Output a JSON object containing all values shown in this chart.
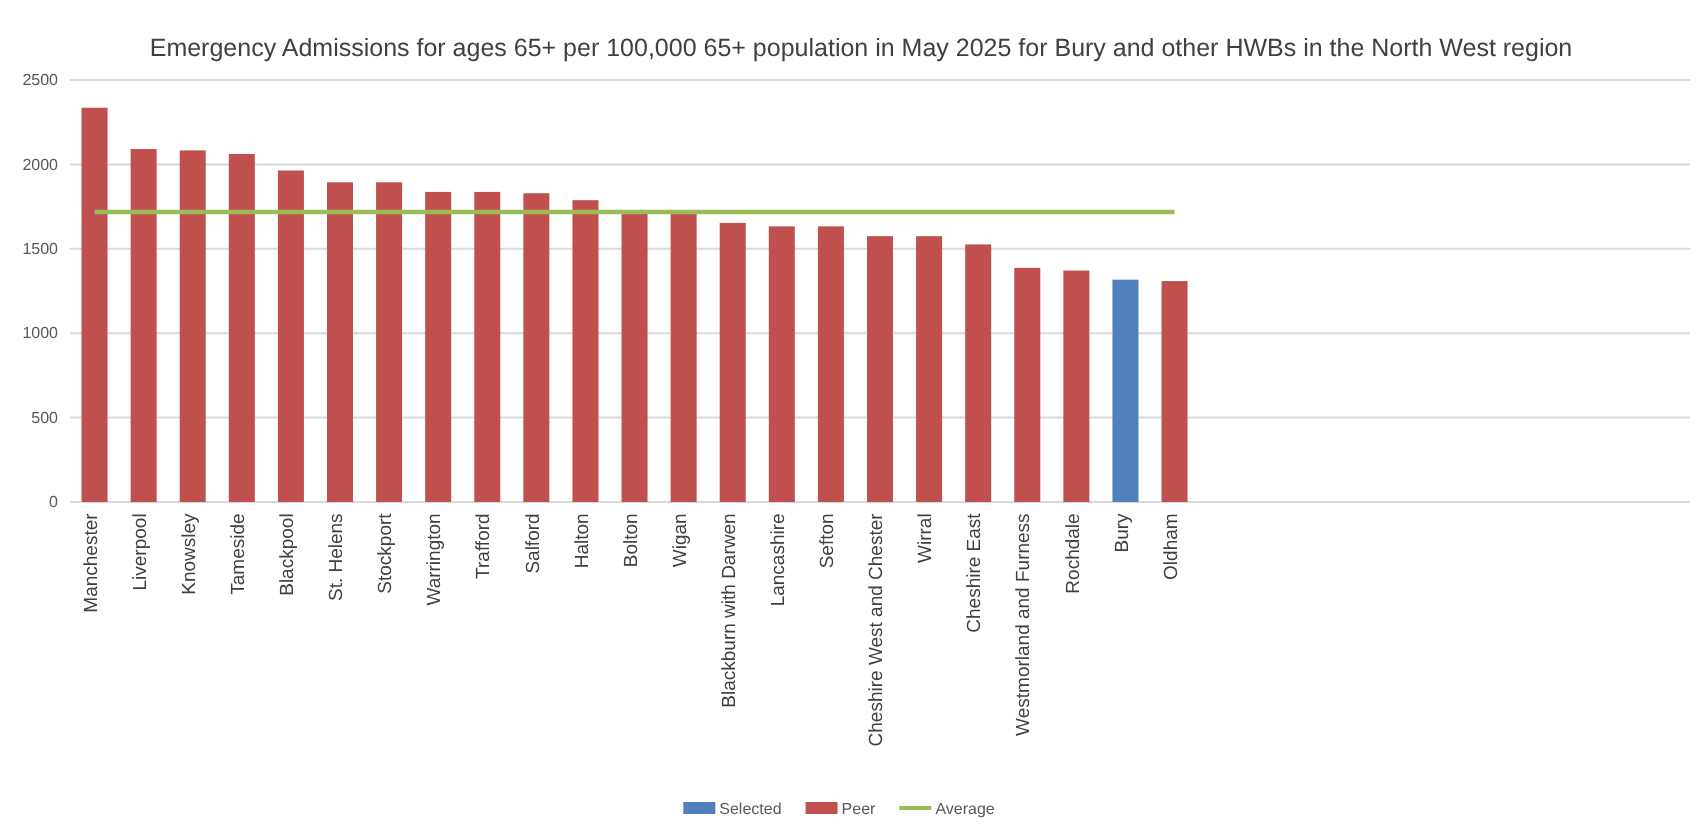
{
  "chart_data": {
    "type": "bar",
    "title": "Emergency Admissions for ages 65+ per 100,000 65+ population in May 2025  for Bury and other HWBs in the North West region",
    "categories": [
      "Manchester",
      "Liverpool",
      "Knowsley",
      "Tameside",
      "Blackpool",
      "St. Helens",
      "Stockport",
      "Warrington",
      "Trafford",
      "Salford",
      "Halton",
      "Bolton",
      "Wigan",
      "Blackburn with Darwen",
      "Lancashire",
      "Sefton",
      "Cheshire West  and Chester",
      "Wirral",
      "Cheshire East",
      "Westmorland and Furness",
      "Rochdale",
      "Bury",
      "Oldham",
      null,
      null,
      null,
      null,
      null,
      null,
      null,
      null,
      null,
      null
    ],
    "series": [
      {
        "name": "Selected",
        "color": "#4f81bd",
        "values": [
          null,
          null,
          null,
          null,
          null,
          null,
          null,
          null,
          null,
          null,
          null,
          null,
          null,
          null,
          null,
          null,
          null,
          null,
          null,
          null,
          null,
          1317,
          null,
          null,
          null,
          null,
          null,
          null,
          null,
          null,
          null,
          null,
          null
        ]
      },
      {
        "name": "Peer",
        "color": "#c0504d",
        "values": [
          2336,
          2091,
          2083,
          2062,
          1964,
          1894,
          1894,
          1837,
          1837,
          1829,
          1788,
          1710,
          1710,
          1653,
          1633,
          1633,
          1575,
          1575,
          1526,
          1387,
          1371,
          null,
          1309,
          null,
          null,
          null,
          null,
          null,
          null,
          null,
          null,
          null,
          null
        ]
      },
      {
        "name": "Average",
        "type": "line",
        "color": "#9bbb59",
        "values": [
          1718,
          1718,
          1718,
          1718,
          1718,
          1718,
          1718,
          1718,
          1718,
          1718,
          1718,
          1718,
          1718,
          1718,
          1718,
          1718,
          1718,
          1718,
          1718,
          1718,
          1718,
          1718,
          1718,
          null,
          null,
          null,
          null,
          null,
          null,
          null,
          null,
          null,
          null
        ]
      }
    ],
    "ylim": [
      0,
      2500
    ],
    "yticks": [
      0,
      500,
      1000,
      1500,
      2000,
      2500
    ],
    "grid": "y",
    "legend": "bottom",
    "marker": "none"
  }
}
